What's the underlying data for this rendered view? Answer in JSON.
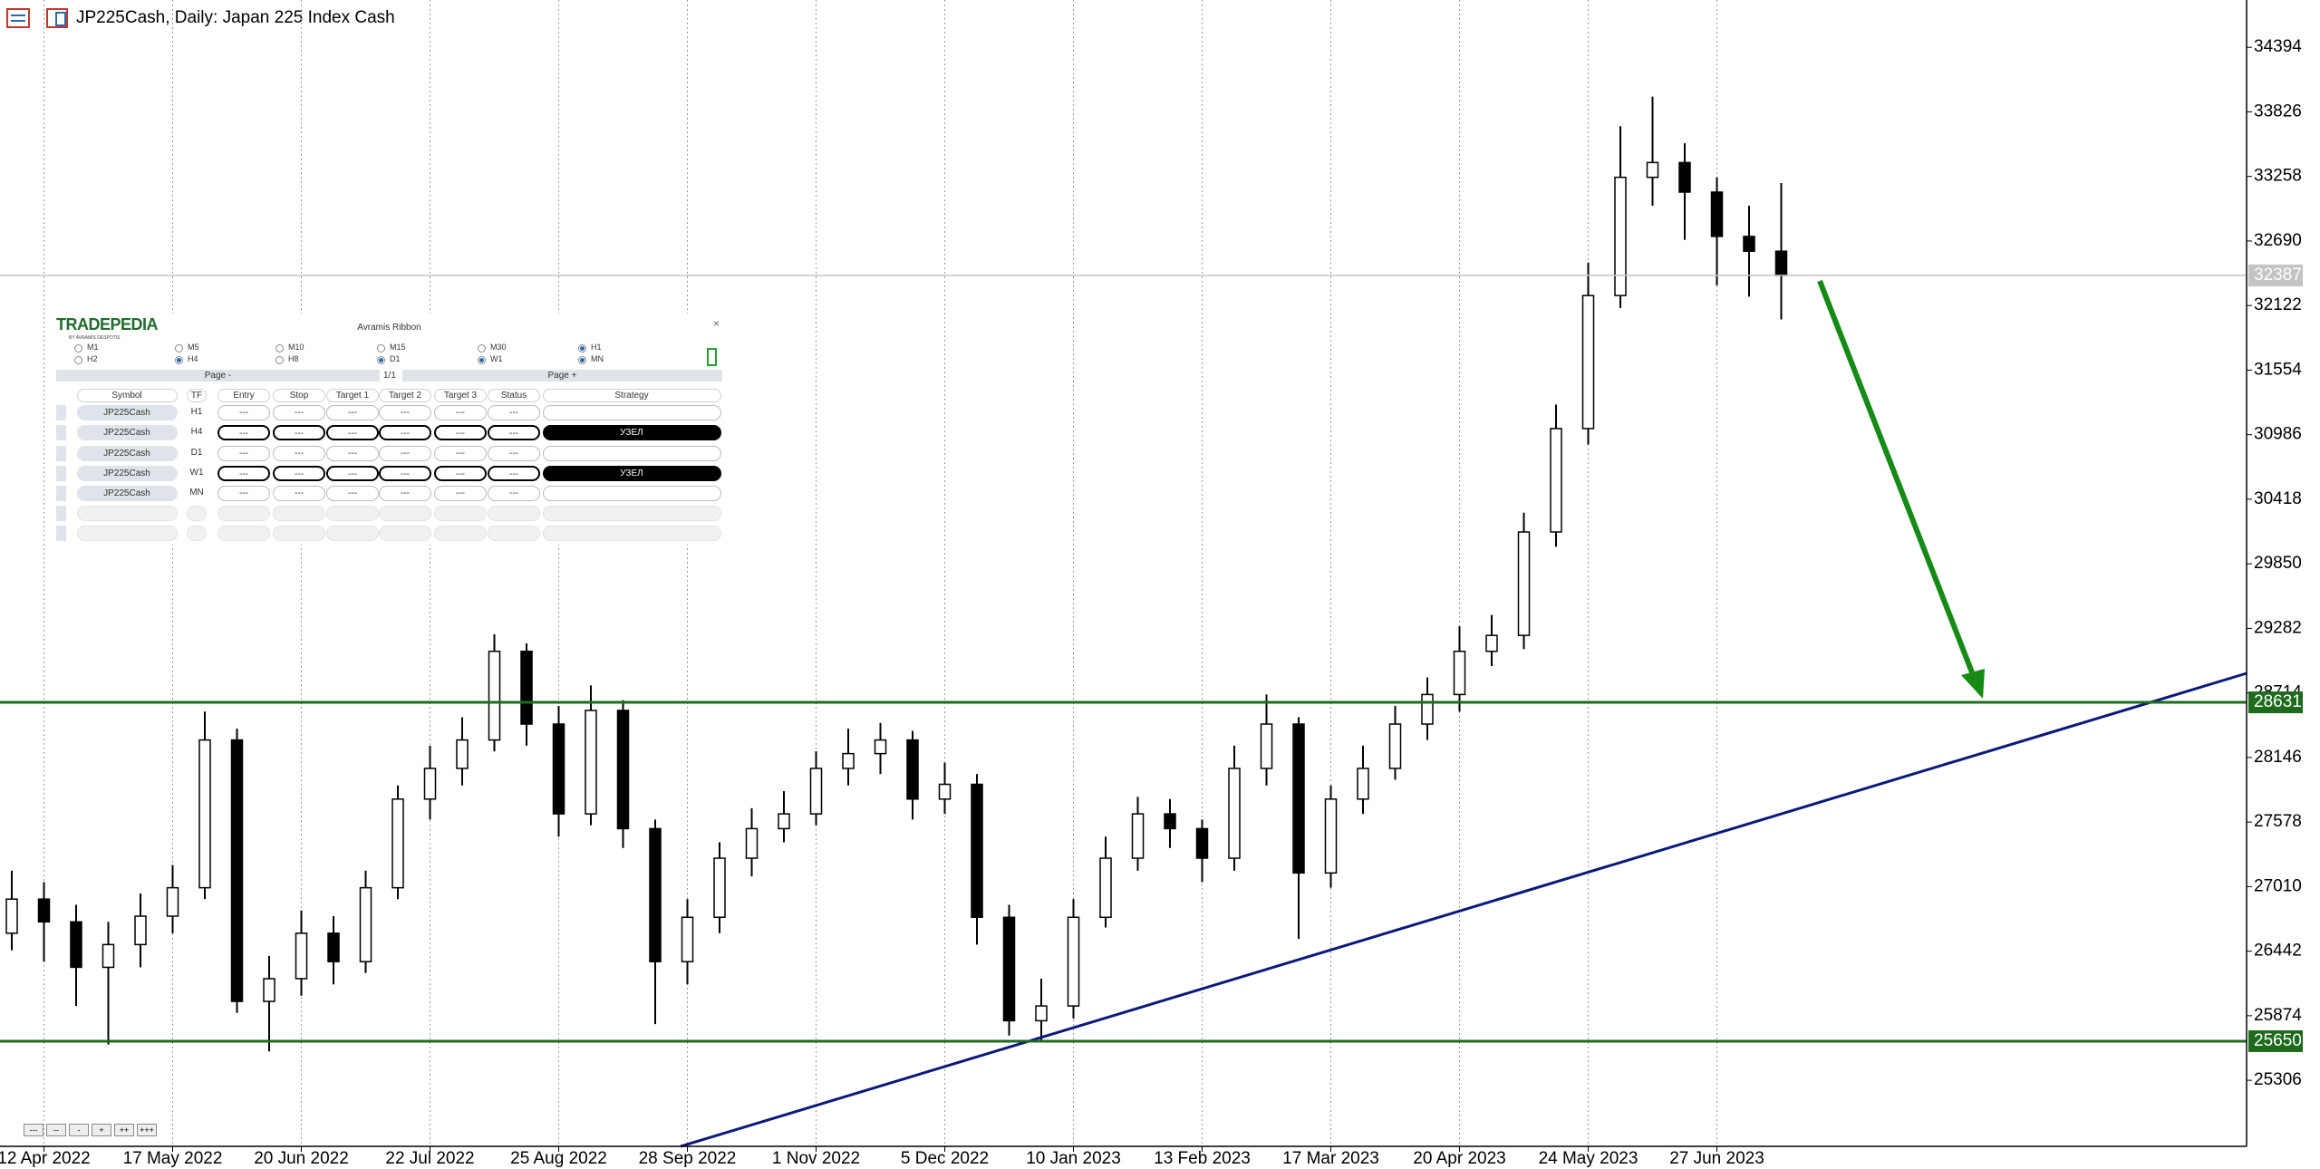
{
  "chart_data": {
    "type": "candlestick",
    "title": "JP225Cash, Daily:  Japan 225 Index Cash",
    "categories": [
      null,
      "12 Apr 2022",
      null,
      null,
      null,
      "17 May 2022",
      null,
      null,
      null,
      "20 Jun 2022",
      null,
      null,
      null,
      "22 Jul 2022",
      null,
      null,
      null,
      "25 Aug 2022",
      null,
      null,
      null,
      "28 Sep 2022",
      null,
      null,
      null,
      "1 Nov 2022",
      null,
      null,
      null,
      "5 Dec 2022",
      null,
      null,
      null,
      "10 Jan 2023",
      null,
      null,
      null,
      "13 Feb 2023",
      null,
      null,
      null,
      "17 Mar 2023",
      null,
      null,
      null,
      "20 Apr 2023",
      null,
      null,
      null,
      "24 May 2023",
      null,
      null,
      null,
      "27 Jun 2023",
      null,
      null
    ],
    "ohlc": [
      [
        26600,
        27150,
        26450,
        26900
      ],
      [
        26900,
        27050,
        26350,
        26700
      ],
      [
        26700,
        26850,
        25960,
        26300
      ],
      [
        26300,
        26700,
        25620,
        26500
      ],
      [
        26500,
        26950,
        26300,
        26750
      ],
      [
        26750,
        27200,
        26600,
        27000
      ],
      [
        27000,
        28550,
        26900,
        28300
      ],
      [
        28300,
        28400,
        25900,
        26000
      ],
      [
        26000,
        26400,
        25560,
        26200
      ],
      [
        26200,
        26800,
        26050,
        26600
      ],
      [
        26600,
        26750,
        26150,
        26350
      ],
      [
        26350,
        27150,
        26250,
        27000
      ],
      [
        27000,
        27900,
        26900,
        27780
      ],
      [
        27780,
        28250,
        27600,
        28050
      ],
      [
        28050,
        28500,
        27900,
        28300
      ],
      [
        28300,
        29230,
        28200,
        29080
      ],
      [
        29080,
        29150,
        28250,
        28440
      ],
      [
        28440,
        28600,
        27450,
        27650
      ],
      [
        27650,
        28780,
        27550,
        28560
      ],
      [
        28560,
        28650,
        27350,
        27520
      ],
      [
        27520,
        27600,
        25800,
        26350
      ],
      [
        26350,
        26900,
        26150,
        26740
      ],
      [
        26740,
        27400,
        26600,
        27260
      ],
      [
        27260,
        27700,
        27100,
        27520
      ],
      [
        27520,
        27850,
        27400,
        27650
      ],
      [
        27650,
        28200,
        27550,
        28050
      ],
      [
        28050,
        28400,
        27900,
        28180
      ],
      [
        28180,
        28450,
        28000,
        28300
      ],
      [
        28300,
        28380,
        27600,
        27780
      ],
      [
        27780,
        28100,
        27650,
        27910
      ],
      [
        27910,
        28000,
        26500,
        26740
      ],
      [
        26740,
        26850,
        25700,
        25830
      ],
      [
        25830,
        26200,
        25650,
        25960
      ],
      [
        25960,
        26900,
        25850,
        26740
      ],
      [
        26740,
        27450,
        26650,
        27260
      ],
      [
        27260,
        27800,
        27150,
        27650
      ],
      [
        27650,
        27780,
        27350,
        27520
      ],
      [
        27520,
        27600,
        27050,
        27260
      ],
      [
        27260,
        28250,
        27150,
        28050
      ],
      [
        28050,
        28700,
        27900,
        28440
      ],
      [
        28440,
        28500,
        26550,
        27130
      ],
      [
        27130,
        27900,
        27000,
        27780
      ],
      [
        27780,
        28250,
        27650,
        28050
      ],
      [
        28050,
        28600,
        27950,
        28440
      ],
      [
        28440,
        28850,
        28300,
        28700
      ],
      [
        28700,
        29300,
        28550,
        29080
      ],
      [
        29080,
        29400,
        28950,
        29220
      ],
      [
        29220,
        30300,
        29100,
        30130
      ],
      [
        30130,
        31250,
        30000,
        31040
      ],
      [
        31040,
        32500,
        30900,
        32210
      ],
      [
        32210,
        33700,
        32100,
        33250
      ],
      [
        33250,
        33960,
        33000,
        33380
      ],
      [
        33380,
        33550,
        32700,
        33120
      ],
      [
        33120,
        33250,
        32300,
        32730
      ],
      [
        32730,
        33000,
        32200,
        32600
      ],
      [
        32600,
        33200,
        32000,
        32387
      ]
    ],
    "ylim": [
      24725,
      34810
    ],
    "yticks": [
      34394,
      33826,
      33258,
      32690,
      32122,
      31554,
      30986,
      30418,
      29850,
      29282,
      28714,
      28146,
      27578,
      27010,
      26442,
      25874,
      25306
    ],
    "grid": true,
    "up_color": "#ffffff",
    "down_color": "#000000",
    "levels": [
      {
        "value": 28631,
        "color": "#1e6b1e"
      },
      {
        "value": 25650,
        "color": "#1e6b1e"
      }
    ],
    "current_price": {
      "value": 32387,
      "color": "#c4c4c4"
    }
  },
  "panel": {
    "logo": "TRADEPEDIA",
    "logo_sub": "BY AVRAMIS DESPOTIS",
    "title": "Avramis Ribbon",
    "close": "×",
    "timeframes": [
      {
        "label": "M1",
        "checked": false
      },
      {
        "label": "M5",
        "checked": false
      },
      {
        "label": "M10",
        "checked": false
      },
      {
        "label": "M15",
        "checked": false
      },
      {
        "label": "M30",
        "checked": false
      },
      {
        "label": "H1",
        "checked": true
      },
      {
        "label": "H2",
        "checked": false
      },
      {
        "label": "H4",
        "checked": true
      },
      {
        "label": "H8",
        "checked": false
      },
      {
        "label": "D1",
        "checked": true
      },
      {
        "label": "W1",
        "checked": true
      },
      {
        "label": "MN",
        "checked": true
      }
    ],
    "page_prev": "Page -",
    "page_info": "1/1",
    "page_next": "Page +",
    "columns": [
      "Symbol",
      "TF",
      "Entry",
      "Stop",
      "Target 1",
      "Target 2",
      "Target 3",
      "Status",
      "Strategy"
    ],
    "rows": [
      [
        "JP225Cash",
        "H1",
        "---",
        "---",
        "---",
        "---",
        "---",
        "---",
        null
      ],
      [
        "JP225Cash",
        "H4",
        "---",
        "---",
        "---",
        "---",
        "---",
        "---",
        "УЗЕЛ"
      ],
      [
        "JP225Cash",
        "D1",
        "---",
        "---",
        "---",
        "---",
        "---",
        "---",
        null
      ],
      [
        "JP225Cash",
        "W1",
        "---",
        "---",
        "---",
        "---",
        "---",
        "---",
        "УЗЕЛ"
      ],
      [
        "JP225Cash",
        "MN",
        "---",
        "---",
        "---",
        "---",
        "---",
        "---",
        null
      ]
    ]
  },
  "zoom_buttons": [
    "---",
    "--",
    "-",
    "+",
    "++",
    "+++"
  ]
}
